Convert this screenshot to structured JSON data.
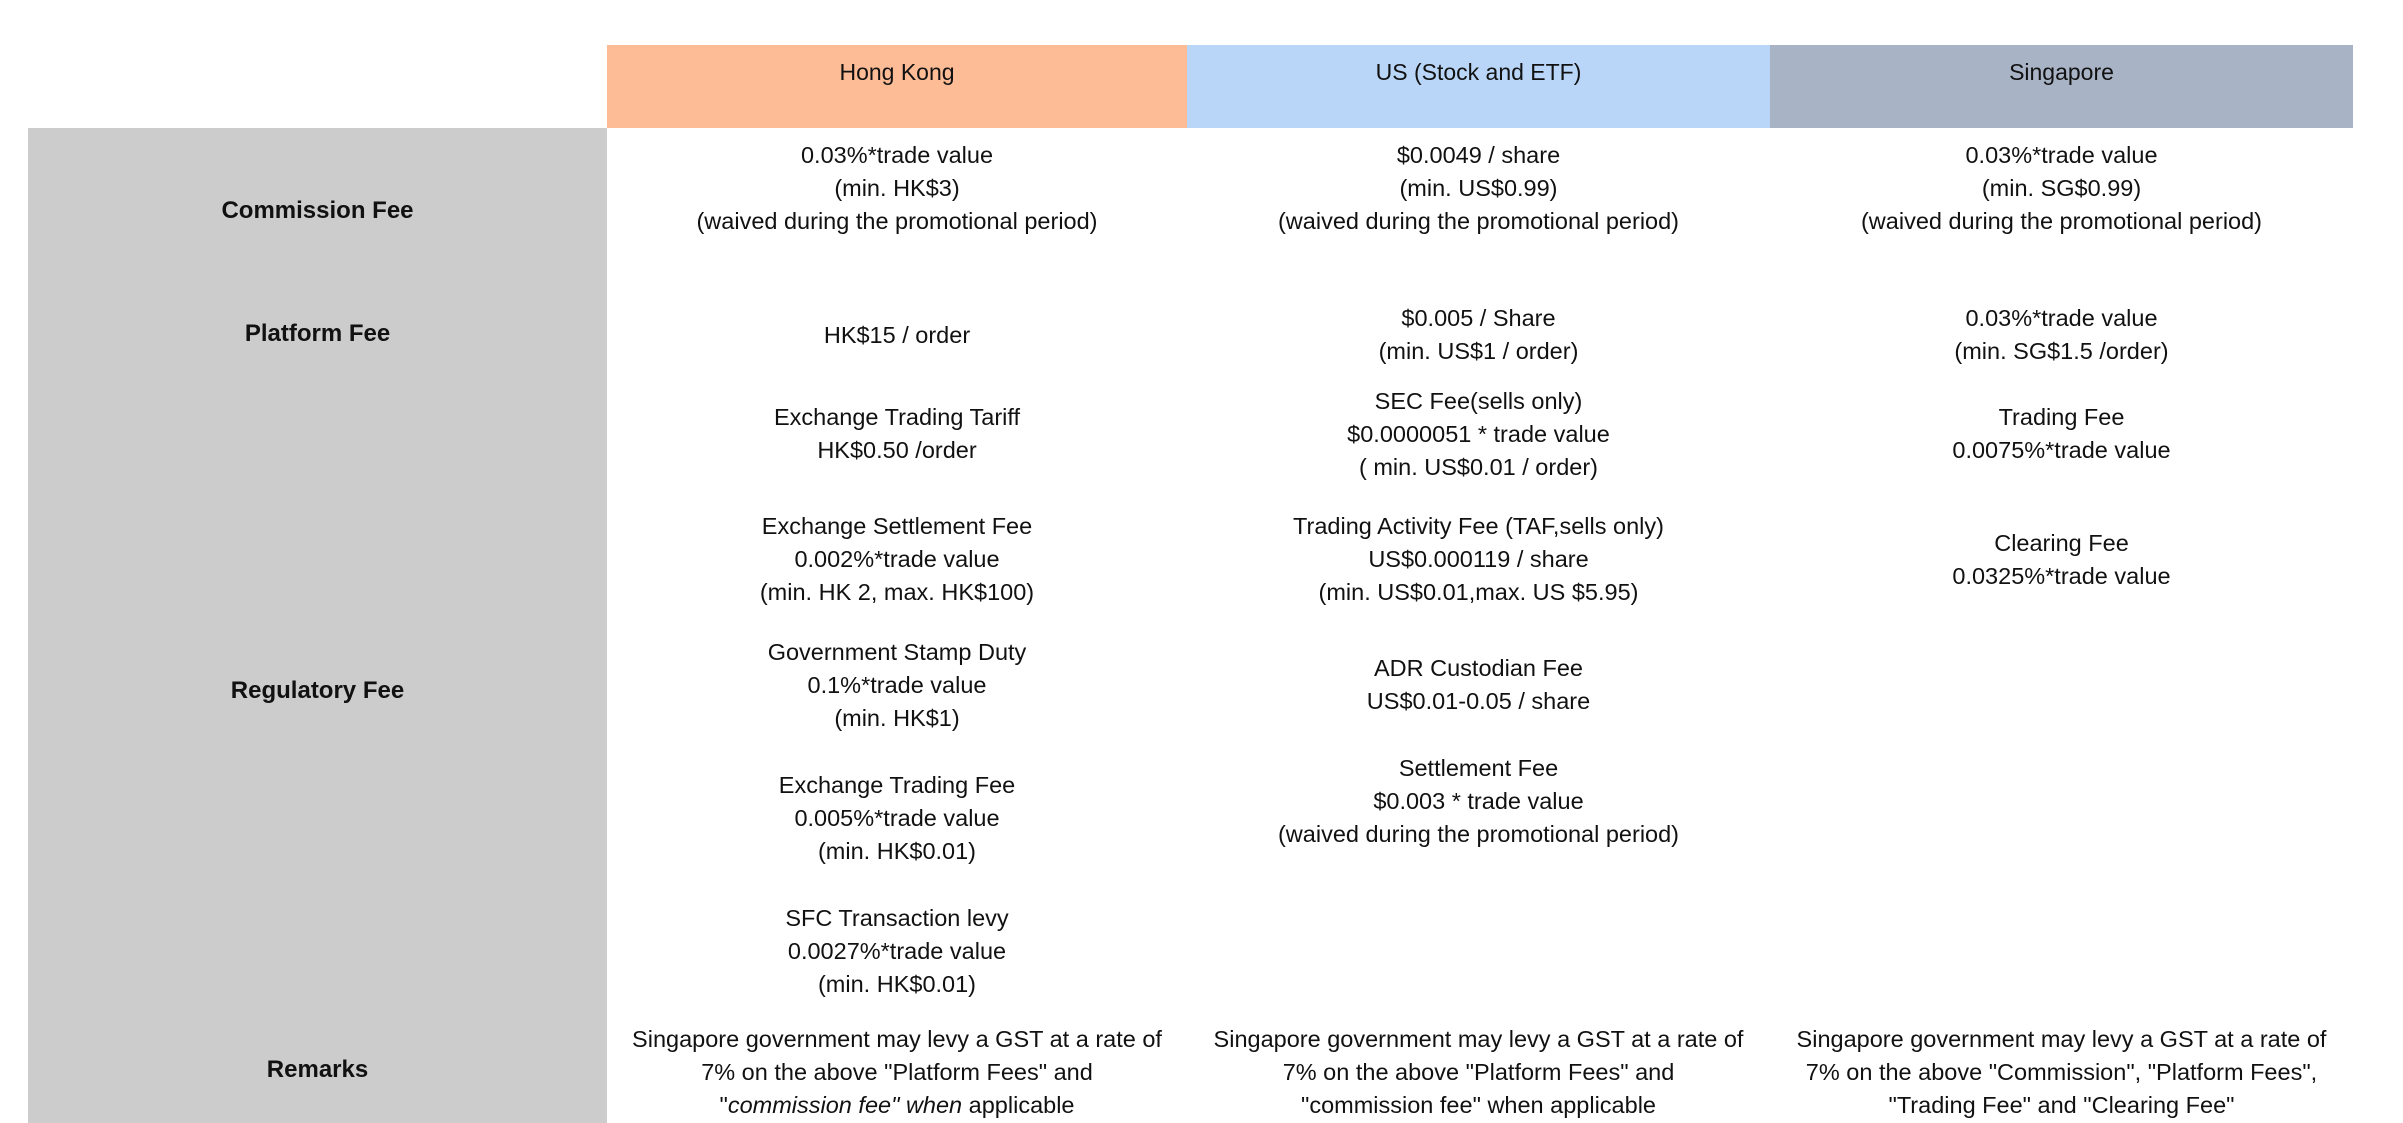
{
  "columns": {
    "hk": "Hong Kong",
    "us": "US (Stock and ETF)",
    "sg": "Singapore"
  },
  "row_labels": {
    "commission": "Commission Fee",
    "platform": "Platform Fee",
    "regulatory": "Regulatory Fee",
    "remarks": "Remarks"
  },
  "colors": {
    "hk_header": "#fdbb96",
    "us_header": "#b9d6f8",
    "sg_header": "#a8b4c5",
    "sidebar": "#cccccc"
  },
  "commission": {
    "hk": [
      "0.03%*trade value",
      "(min. HK$3)",
      "(waived during the promotional period)"
    ],
    "us": [
      "$0.0049 / share",
      "(min. US$0.99)",
      "(waived during the promotional period)"
    ],
    "sg": [
      "0.03%*trade value",
      "(min. SG$0.99)",
      "(waived during the promotional period)"
    ]
  },
  "platform": {
    "hk": [
      "HK$15 / order"
    ],
    "us": [
      "$0.005 / Share",
      "(min. US$1 / order)"
    ],
    "sg": [
      "0.03%*trade value",
      "(min. SG$1.5  /order)"
    ]
  },
  "regulatory": {
    "hk": [
      [
        "Exchange Trading Tariff",
        "HK$0.50 /order"
      ],
      [
        "Exchange Settlement Fee",
        "0.002%*trade value",
        "(min. HK 2, max. HK$100)"
      ],
      [
        "Government Stamp Duty",
        "0.1%*trade value",
        "(min. HK$1)"
      ],
      [
        "Exchange Trading Fee",
        "0.005%*trade value",
        "(min. HK$0.01)"
      ],
      [
        "SFC Transaction levy",
        "0.0027%*trade value",
        "(min. HK$0.01)"
      ]
    ],
    "us": [
      [
        "SEC Fee(sells only)",
        "$0.0000051 * trade value",
        "( min. US$0.01 / order)"
      ],
      [
        "Trading Activity Fee (TAF,sells only)",
        "US$0.000119 / share",
        "(min. US$0.01,max. US $5.95)"
      ],
      [
        "ADR Custodian Fee",
        "US$0.01-0.05 / share"
      ],
      [
        "Settlement Fee",
        "$0.003 * trade value",
        "(waived during the promotional period)"
      ]
    ],
    "sg": [
      [
        "Trading Fee",
        "0.0075%*trade value"
      ],
      [
        "Clearing Fee",
        "0.0325%*trade value"
      ]
    ]
  },
  "remarks": {
    "hk": {
      "l1": "Singapore government may levy a GST at a rate of",
      "l2": "7% on the above  \"Platform Fees\" and",
      "l3_pre": "\"",
      "l3_em": "commission fee\" when",
      "l3_post": " applicable"
    },
    "us": [
      "Singapore government may levy a GST at a rate of",
      "7% on the above \"Platform Fees\" and",
      "\"commission fee\" when applicable"
    ],
    "sg": [
      "Singapore government may levy a GST at a rate of",
      "7% on the above \"Commission\",  \"Platform Fees\",",
      "\"Trading Fee\" and \"Clearing Fee\""
    ]
  }
}
